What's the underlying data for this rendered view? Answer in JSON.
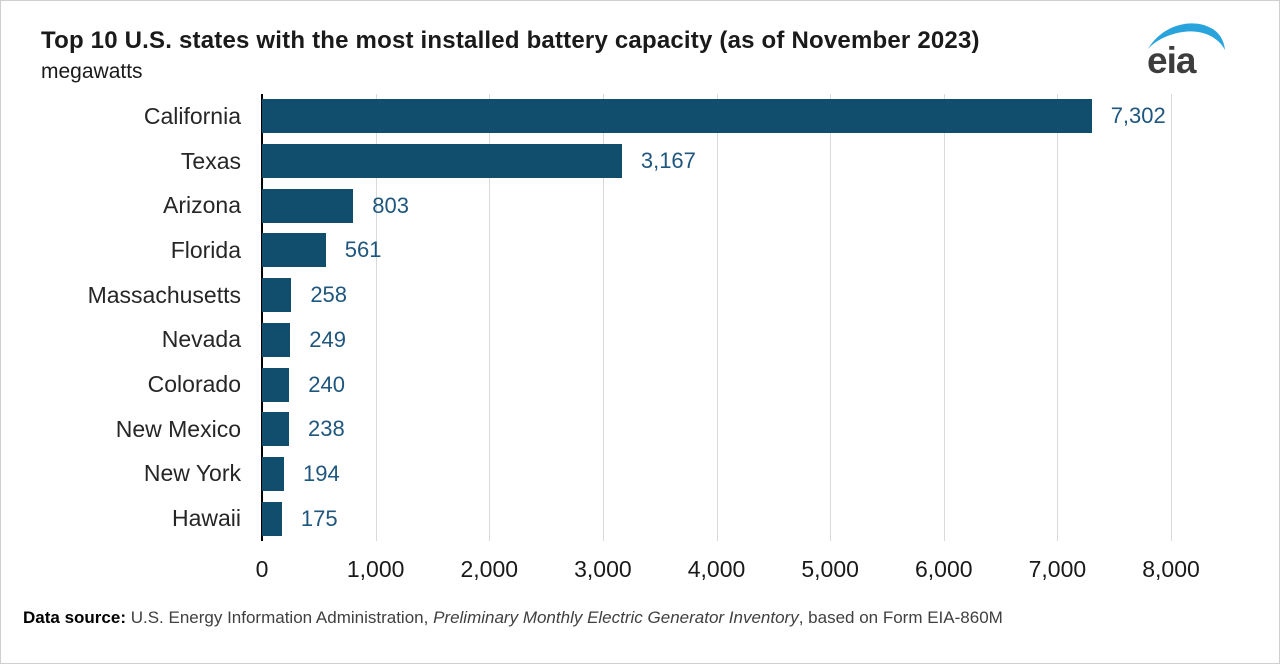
{
  "header": {
    "title": "Top 10 U.S. states with the most installed battery capacity (as of November 2023)",
    "subtitle": "megawatts",
    "logo_text": "eia"
  },
  "chart_data": {
    "type": "bar",
    "orientation": "horizontal",
    "title": "Top 10 U.S. states with the most installed battery capacity (as of November 2023)",
    "unit_label": "megawatts",
    "categories": [
      "California",
      "Texas",
      "Arizona",
      "Florida",
      "Massachusetts",
      "Nevada",
      "Colorado",
      "New Mexico",
      "New York",
      "Hawaii"
    ],
    "values": [
      7302,
      3167,
      803,
      561,
      258,
      249,
      240,
      238,
      194,
      175
    ],
    "value_labels": [
      "7,302",
      "3,167",
      "803",
      "561",
      "258",
      "249",
      "240",
      "238",
      "194",
      "175"
    ],
    "xlim": [
      0,
      8000
    ],
    "xticks": [
      0,
      1000,
      2000,
      3000,
      4000,
      5000,
      6000,
      7000,
      8000
    ],
    "xtick_labels": [
      "0",
      "1,000",
      "2,000",
      "3,000",
      "4,000",
      "5,000",
      "6,000",
      "7,000",
      "8,000"
    ],
    "grid": "vertical-gridlines-on",
    "legend": "none"
  },
  "colors": {
    "bar": "#114e6e",
    "value_label": "#1f567e",
    "gridline": "#d9d9d9",
    "axis_line": "#000000",
    "link_blue": "#1f7ec2",
    "logo_swoosh_blue": "#29a3dc",
    "logo_text_gray": "#3d3d3d"
  },
  "footer": {
    "prefix_bold": "Data source:",
    "text_before_link": " U.S. Energy Information Administration, ",
    "link_text": "Preliminary Monthly Electric Generator Inventory",
    "text_after_link": ", based on Form EIA-860M"
  }
}
